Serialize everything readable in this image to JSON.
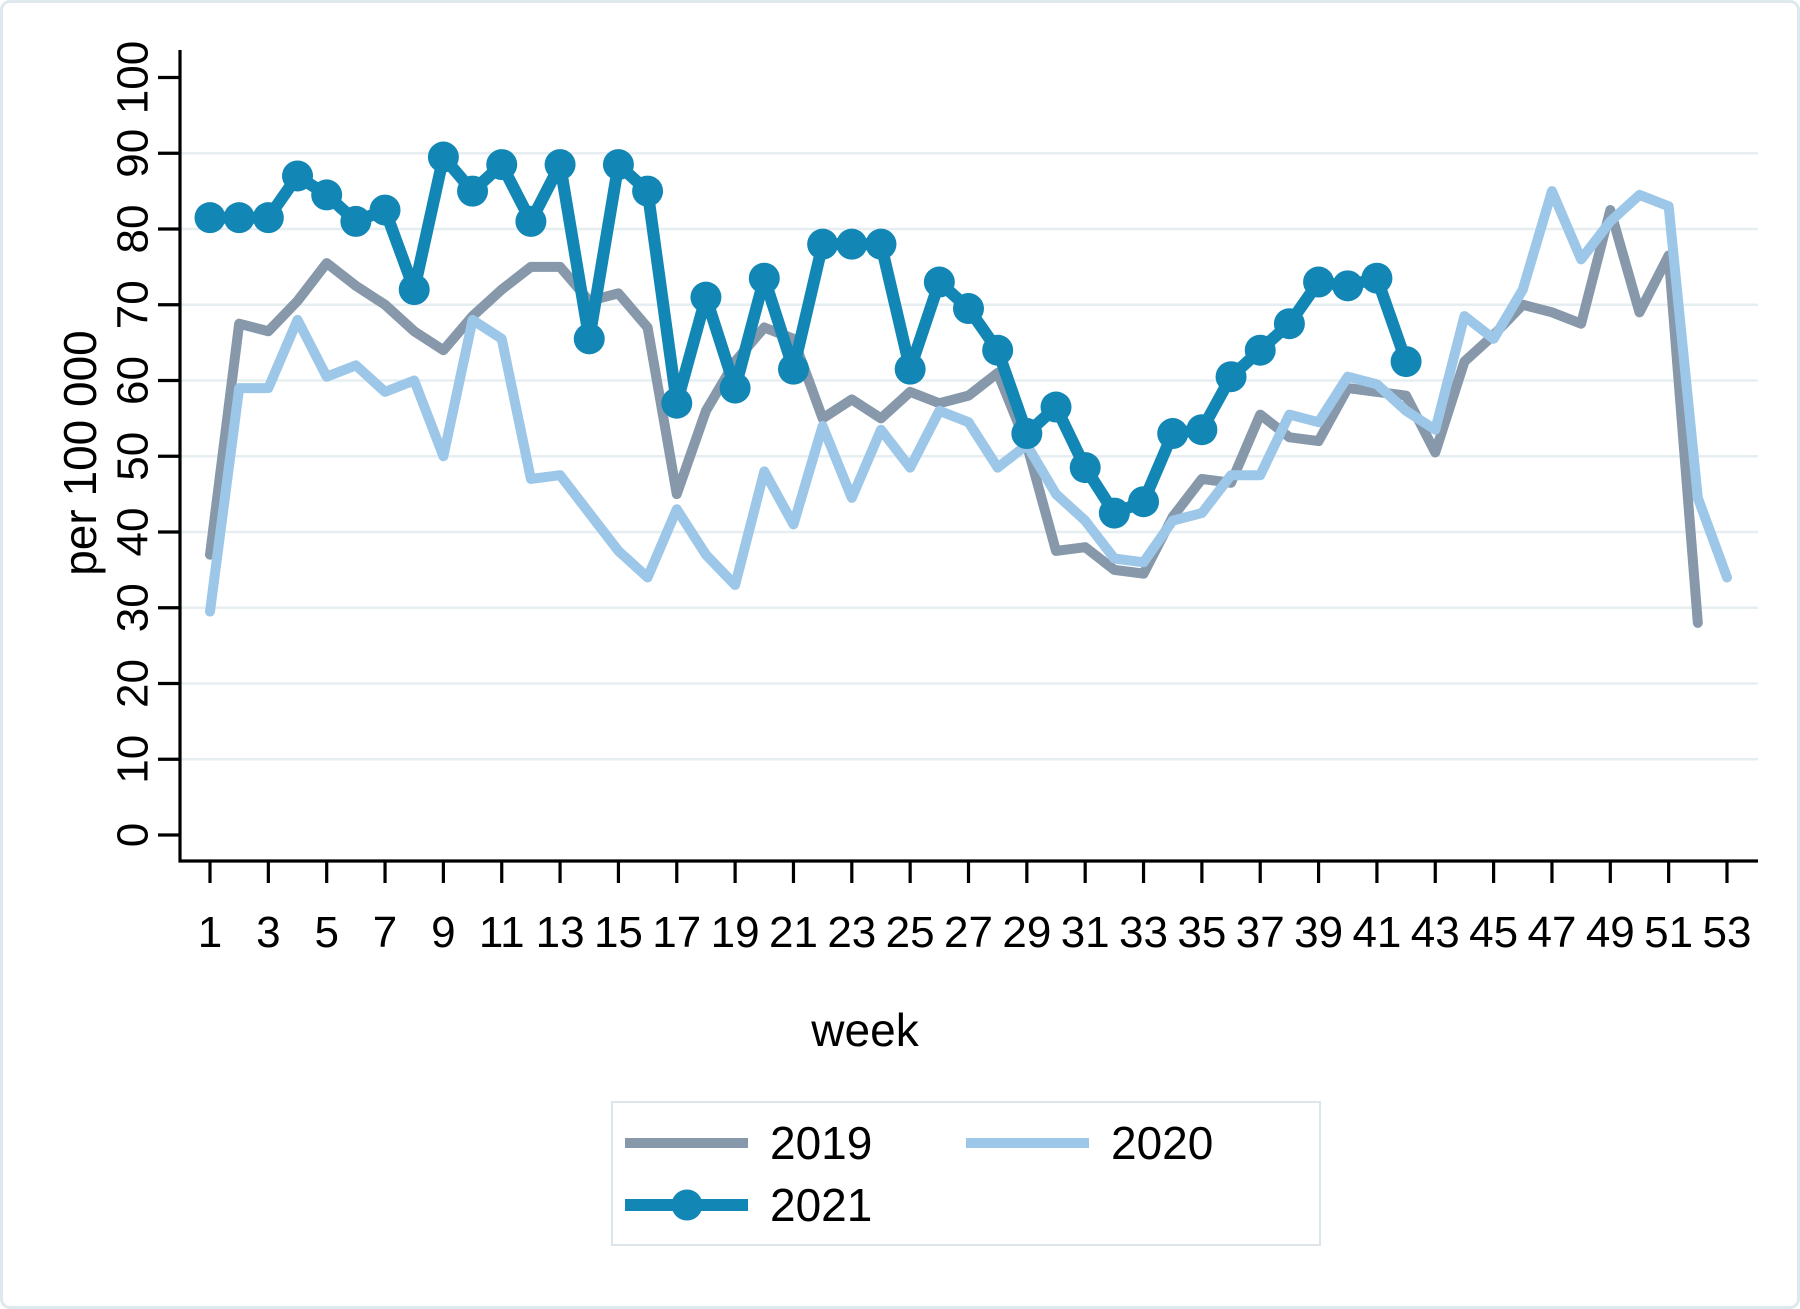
{
  "figure": {
    "background": "#ffffff",
    "border_color": "#dde9ed",
    "grid_color": "#e7eef1",
    "axis_color": "#000000"
  },
  "chart_data": {
    "type": "line",
    "title": "",
    "xlabel": "week",
    "ylabel": "per 100 000",
    "x_range": [
      1,
      53
    ],
    "y_range": [
      0,
      100
    ],
    "x_ticks": [
      1,
      3,
      5,
      7,
      9,
      11,
      13,
      15,
      17,
      19,
      21,
      23,
      25,
      27,
      29,
      31,
      33,
      35,
      37,
      39,
      41,
      43,
      45,
      47,
      49,
      51,
      53
    ],
    "y_ticks": [
      0,
      10,
      20,
      30,
      40,
      50,
      60,
      70,
      80,
      90,
      100
    ],
    "y_gridlines": [
      10,
      20,
      30,
      40,
      50,
      60,
      70,
      80,
      90
    ],
    "grid": true,
    "legend_position": "bottom-center",
    "series": [
      {
        "name": "2019",
        "color": "#8698aa",
        "marker": false,
        "start_week": 1,
        "values": [
          37,
          67.5,
          66.5,
          70.5,
          75.5,
          72.5,
          70,
          66.5,
          64,
          68.5,
          72,
          75,
          75,
          70.5,
          71.5,
          67,
          45,
          56,
          62.5,
          67,
          65.5,
          55,
          57.5,
          55,
          58.5,
          57,
          58,
          61,
          51.5,
          37.5,
          38,
          35,
          34.5,
          42,
          47,
          46.5,
          55.5,
          52.5,
          52,
          59,
          58.5,
          58,
          50.5,
          62.5,
          66,
          70,
          69,
          67.5,
          82.5,
          69,
          76.5,
          28
        ]
      },
      {
        "name": "2020",
        "color": "#9cc7e8",
        "marker": false,
        "start_week": 1,
        "values": [
          29.5,
          59,
          59,
          68,
          60.5,
          62,
          58.5,
          60,
          50,
          68,
          65.5,
          47,
          47.5,
          42.5,
          37.5,
          34,
          43,
          37,
          33,
          48,
          41,
          54,
          44.5,
          53.5,
          48.5,
          56,
          54.5,
          48.5,
          51.5,
          45,
          41.5,
          36.5,
          36,
          41.5,
          42.5,
          47.5,
          47.5,
          55.5,
          54.5,
          60.5,
          59.5,
          56,
          53.5,
          68.5,
          65.5,
          72,
          85,
          76,
          81,
          84.5,
          83,
          44.5,
          34
        ]
      },
      {
        "name": "2021",
        "color": "#1287b5",
        "marker": true,
        "start_week": 1,
        "values": [
          81.5,
          81.5,
          81.5,
          87,
          84.5,
          81,
          82.5,
          72,
          89.5,
          85,
          88.5,
          81,
          88.5,
          65.5,
          88.5,
          85,
          57,
          71,
          59,
          73.5,
          61.5,
          78,
          78,
          78,
          61.5,
          73,
          69.5,
          64,
          53,
          56.5,
          48.5,
          42.5,
          44,
          53,
          53.5,
          60.5,
          64,
          67.5,
          73,
          72.5,
          73.5,
          62.5
        ]
      }
    ]
  },
  "legend": {
    "items": [
      {
        "label": "2019"
      },
      {
        "label": "2020"
      },
      {
        "label": "2021"
      }
    ]
  }
}
